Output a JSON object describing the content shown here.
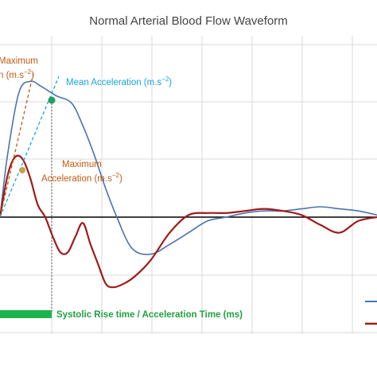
{
  "chart_data": {
    "type": "line",
    "title": "Normal Arterial Blood Flow Waveform",
    "xlabel": "",
    "ylabel": "",
    "grid": true,
    "legend": "bottom-right",
    "series": [
      {
        "color": "#4a72b0",
        "x": [
          0,
          2,
          5,
          8,
          11,
          15,
          19,
          22,
          25,
          28,
          31,
          35,
          40,
          45,
          50,
          55,
          60,
          65,
          70,
          75,
          80,
          85,
          90,
          95,
          100
        ],
        "y": [
          0,
          60,
          120,
          131,
          126,
          117,
          110,
          88,
          60,
          28,
          0,
          -16,
          -19,
          -14,
          -8,
          -2,
          0,
          4,
          6,
          6,
          8,
          10,
          8,
          6,
          2
        ]
      },
      {
        "color": "#a01a1a",
        "x": [
          0,
          2,
          4,
          6,
          8,
          10,
          12,
          14,
          16,
          18,
          20,
          22,
          24,
          26,
          28,
          30,
          33,
          36,
          40,
          45,
          50,
          55,
          60,
          65,
          70,
          75,
          80,
          85,
          90,
          95,
          100
        ],
        "y": [
          0,
          40,
          58,
          56,
          38,
          12,
          0,
          -10,
          -18,
          -18,
          -10,
          -3,
          -14,
          -24,
          -34,
          -36,
          -34,
          -30,
          -22,
          -8,
          2,
          4,
          4,
          6,
          8,
          6,
          2,
          -4,
          -8,
          -2,
          0
        ]
      }
    ],
    "xlim": [
      0,
      100
    ],
    "ylim": [
      -60,
      175
    ],
    "annotations": {
      "max_accel_top": {
        "text_line1": "Maximum",
        "text_line2": "n (m.s",
        "text_sup": "−2",
        "text_end": ")",
        "color": "#c55a11"
      },
      "mean_accel": {
        "text": "Mean Acceleration (m.s",
        "text_sup": "−2",
        "text_end": ")",
        "color": "#1aa3d9"
      },
      "max_accel_mid": {
        "text_line1": "Maximum",
        "text_line2": "Acceleration (m.s",
        "text_sup": "−2",
        "text_end": ")",
        "color": "#c55a11"
      },
      "rise_time": {
        "text": "Systolic Rise time / Acceleration Time (ms)",
        "color": "#20a040"
      }
    }
  }
}
